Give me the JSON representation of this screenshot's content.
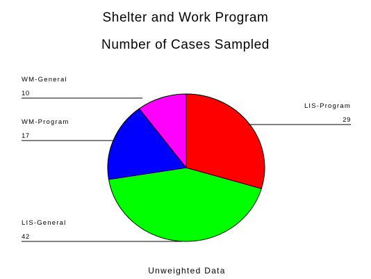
{
  "chart_data": {
    "type": "pie",
    "title": "Shelter and Work Program",
    "subtitle": "Number of Cases Sampled",
    "footer": "Unweighted Data",
    "start": "12 o'clock",
    "direction": "clockwise",
    "slices": [
      {
        "label": "LIS-Program",
        "value": 29,
        "color": "#ff0000"
      },
      {
        "label": "LIS-General",
        "value": 42,
        "color": "#00ff00"
      },
      {
        "label": "WM-Program",
        "value": 17,
        "color": "#0000ff"
      },
      {
        "label": "WM-General",
        "value": 10,
        "color": "#ff00ff"
      }
    ]
  }
}
